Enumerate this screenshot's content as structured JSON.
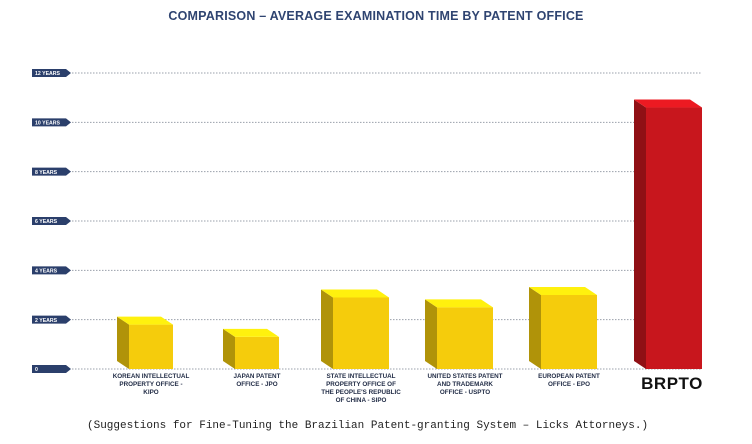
{
  "chart_data": {
    "type": "bar",
    "title": "COMPARISON – AVERAGE EXAMINATION TIME BY PATENT OFFICE",
    "categories": [
      "KOREAN INTELLECTUAL PROPERTY OFFICE - KIPO",
      "JAPAN PATENT OFFICE - JPO",
      "STATE INTELLECTUAL PROPERTY OFFICE OF THE PEOPLE'S REPUBLIC OF CHINA - SIPO",
      "UNITED STATES PATENT AND TRADEMARK OFFICE - USPTO",
      "EUROPEAN PATENT OFFICE - EPO",
      "BRPTO"
    ],
    "values": [
      1.8,
      1.3,
      2.9,
      2.5,
      3.0,
      10.6
    ],
    "bar_colors": [
      "#f5cc0c",
      "#f5cc0c",
      "#f5cc0c",
      "#f5cc0c",
      "#f5cc0c",
      "#c8161d"
    ],
    "highlight_category": "BRPTO",
    "ylim": [
      0,
      12
    ],
    "y_ticks": [
      {
        "value": 0,
        "label": "0"
      },
      {
        "value": 2,
        "label": "2 YEARS"
      },
      {
        "value": 4,
        "label": "4 YEARS"
      },
      {
        "value": 6,
        "label": "6 YEARS"
      },
      {
        "value": 8,
        "label": "8 YEARS"
      },
      {
        "value": 10,
        "label": "10 YEARS"
      },
      {
        "value": 12,
        "label": "12 YEARS"
      }
    ],
    "grid": true,
    "legend": "none"
  },
  "source_note": "(Suggestions for Fine-Tuning the Brazilian Patent-granting System – Licks Attorneys.)",
  "colors": {
    "title": "#2f4471",
    "tick_tag": "#2b3f6b",
    "grid": "#9aa0ab"
  }
}
